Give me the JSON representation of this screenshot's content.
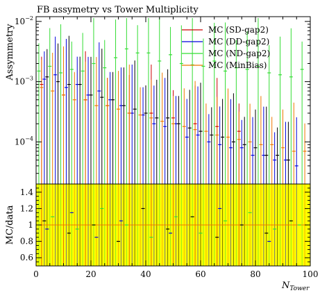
{
  "chart_data": [
    {
      "type": "scatter",
      "title": "FB assymetry vs Tower Multiplicity",
      "ylabel": "Assymmetry",
      "xlabel": "",
      "y_scale": "log",
      "ylim": [
        2e-05,
        0.012
      ],
      "xlim": [
        0,
        100
      ],
      "y_tick_labels": [
        {
          "value": 0.01,
          "base": "10",
          "exp": "−2"
        },
        {
          "value": 0.001,
          "base": "10",
          "exp": "−3"
        },
        {
          "value": 0.0001,
          "base": "10",
          "exp": "−4"
        }
      ],
      "legend_position": "top-right",
      "series": [
        {
          "name": "MC (SD-gap2)",
          "color": "#cc0000",
          "x": [
            2,
            10,
            18,
            26,
            34,
            42,
            50,
            58,
            66,
            74
          ],
          "y": [
            0.0009,
            0.0006,
            0.0005,
            0.0004,
            0.0003,
            0.0003,
            0.00025,
            0.0002,
            0.00018,
            0.00015
          ]
        },
        {
          "name": "MC (DD-gap2)",
          "color": "#0000dd",
          "x": [
            3,
            7,
            11,
            15,
            19,
            23,
            27,
            31,
            35,
            39,
            43,
            47,
            51,
            55,
            59,
            63,
            67,
            71,
            75,
            79,
            83,
            87,
            91,
            95
          ],
          "y": [
            0.0011,
            0.0013,
            0.0008,
            0.0009,
            0.0006,
            0.0007,
            0.0005,
            0.0004,
            0.0003,
            0.00028,
            0.0002,
            0.00018,
            0.0002,
            0.00012,
            0.00013,
            0.0001,
            9e-05,
            8e-05,
            8e-05,
            6e-05,
            6e-05,
            5e-05,
            5e-05,
            4e-05
          ]
        },
        {
          "name": "MC (ND-gap2)",
          "color": "#33dd33",
          "x": [
            1,
            5,
            9,
            13,
            17,
            21,
            25,
            29,
            33,
            37,
            41,
            45,
            49,
            53,
            57,
            61,
            65,
            69,
            73,
            77,
            81,
            85,
            89,
            93,
            97
          ],
          "y": [
            0.0015,
            0.0018,
            0.0014,
            0.0016,
            0.0015,
            0.002,
            0.0017,
            0.0025,
            0.0035,
            0.003,
            0.003,
            0.0022,
            0.0028,
            0.002,
            0.0019,
            0.0018,
            0.0022,
            0.0015,
            0.0017,
            0.0016,
            0.0018,
            0.0014,
            0.0013,
            0.0012,
            0.0016
          ]
        },
        {
          "name": "MC (MinBias)",
          "color": "#ee7700",
          "x": [
            2,
            6,
            10,
            14,
            18,
            22,
            26,
            30,
            34,
            38,
            42,
            46,
            50,
            54,
            58,
            62,
            66,
            70,
            74,
            78,
            82,
            86,
            90,
            94,
            98
          ],
          "y": [
            0.0008,
            0.0007,
            0.0006,
            0.0005,
            0.0005,
            0.0004,
            0.0004,
            0.00035,
            0.0003,
            0.00028,
            0.00025,
            0.00022,
            0.0002,
            0.00018,
            0.00016,
            0.00015,
            0.00013,
            0.00012,
            0.00011,
            0.0001,
            9e-05,
            9e-05,
            8e-05,
            7e-05,
            7e-05
          ]
        },
        {
          "name": "",
          "color": "#000000",
          "x": [
            4,
            8,
            12,
            16,
            20,
            24,
            28,
            32,
            36,
            40,
            44,
            48,
            52,
            56,
            60,
            64,
            68,
            72,
            76,
            80,
            84,
            88,
            92
          ],
          "y": [
            0.0012,
            0.001,
            0.0009,
            0.0009,
            0.0006,
            0.00055,
            0.0005,
            0.0004,
            0.00035,
            0.0003,
            0.00025,
            0.00025,
            0.0002,
            0.00017,
            0.00015,
            0.00013,
            0.00012,
            0.0001,
            9e-05,
            8e-05,
            6e-05,
            6e-05,
            5e-05
          ]
        }
      ]
    },
    {
      "type": "scatter",
      "title": "",
      "ylabel": "MC/data",
      "xlabel_base": "N",
      "xlabel_sub": "Tower",
      "ylim": [
        0.5,
        1.5
      ],
      "xlim": [
        0,
        100
      ],
      "y_ticks": [
        0.6,
        0.8,
        1.0,
        1.2,
        1.4
      ],
      "y_tick_labels": [
        "0.6",
        "0.8",
        "1",
        "1.2",
        "1.4"
      ],
      "x_ticks": [
        0,
        20,
        40,
        60,
        80,
        100
      ],
      "x_tick_labels": [
        "0",
        "20",
        "40",
        "60",
        "80",
        "100"
      ],
      "reference_line": 1,
      "band_color": "#ffff00",
      "series": [
        {
          "name": "MC (DD-gap2)",
          "color": "#0000dd",
          "x": [
            4,
            13,
            22,
            31,
            49,
            67,
            85
          ],
          "y": [
            0.95,
            1.15,
            0.85,
            1.05,
            0.9,
            1.2,
            0.8
          ]
        },
        {
          "name": "MC (ND-gap2)",
          "color": "#33dd33",
          "x": [
            6,
            15,
            24,
            33,
            42,
            51,
            60,
            69,
            78,
            87,
            96
          ],
          "y": [
            1.1,
            0.95,
            1.2,
            1.0,
            0.85,
            1.1,
            0.9,
            1.05,
            1.15,
            0.95,
            1.0
          ]
        },
        {
          "name": "",
          "color": "#000000",
          "x": [
            3,
            12,
            21,
            30,
            39,
            48,
            57,
            66,
            75,
            84,
            93
          ],
          "y": [
            1.05,
            0.9,
            1.0,
            0.8,
            1.2,
            0.95,
            1.1,
            0.85,
            1.0,
            0.9,
            1.05
          ]
        }
      ]
    }
  ]
}
